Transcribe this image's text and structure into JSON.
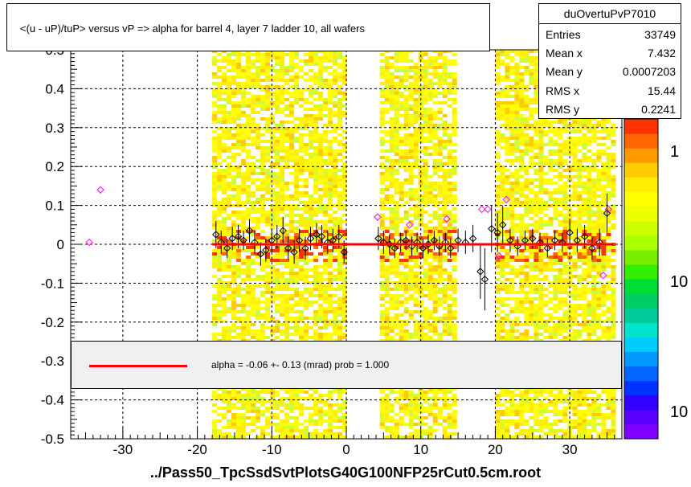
{
  "title": "<(u - uP)/tuP> versus  vP => alpha for barrel 4, layer 7 ladder 10, all wafers",
  "footer": "../Pass50_TpcSsdSvtPlotsG40G100NFP25rCut0.5cm.root",
  "stats": {
    "name": "duOvertuPvP7010",
    "rows": [
      {
        "label": "Entries",
        "value": "33749"
      },
      {
        "label": "Mean x",
        "value": "7.432"
      },
      {
        "label": "Mean y",
        "value": "0.0007203"
      },
      {
        "label": "RMS x",
        "value": "15.44"
      },
      {
        "label": "RMS y",
        "value": "0.2241"
      }
    ]
  },
  "fit": {
    "label": "alpha =   -0.06 +-  0.13 (mrad) prob = 1.000",
    "color": "#ff0000"
  },
  "palette": {
    "labels": [
      "1",
      "10",
      "10"
    ],
    "colors": [
      "#7f00ff",
      "#5a00ff",
      "#3300ff",
      "#0033ff",
      "#0066ff",
      "#0099ff",
      "#00ccff",
      "#00e5cc",
      "#00cc99",
      "#00cc66",
      "#00dd33",
      "#33ee00",
      "#77ee00",
      "#aaff00",
      "#ccff00",
      "#eeff00",
      "#ffff00",
      "#ffee00",
      "#ffcc00",
      "#ff9900",
      "#ff6600",
      "#ff3300"
    ]
  },
  "chart_data": {
    "type": "scatter",
    "title": "<(u - uP)/tuP> versus  vP => alpha for barrel 4, layer 7 ladder 10, all wafers",
    "xlim": [
      -37,
      37
    ],
    "ylim": [
      -0.5,
      0.5
    ],
    "x_ticks": [
      "-30",
      "-20",
      "-10",
      "0",
      "10",
      "20",
      "30"
    ],
    "y_ticks": [
      "-0.5",
      "-0.4",
      "-0.3",
      "-0.2",
      "-0.1",
      "0",
      "0.1",
      "0.2",
      "0.3",
      "0.4",
      "0.5"
    ],
    "x_tick_values": [
      -30,
      -20,
      -10,
      0,
      10,
      20,
      30
    ],
    "y_tick_values": [
      -0.5,
      -0.4,
      -0.3,
      -0.2,
      -0.1,
      0,
      0.1,
      0.2,
      0.3,
      0.4,
      0.5
    ],
    "grid": true,
    "density_bands_x": [
      [
        -18,
        0
      ],
      [
        4.5,
        14.5
      ],
      [
        20,
        36
      ]
    ],
    "fit_line": {
      "x": [
        -18,
        35.5
      ],
      "y": [
        0,
        0
      ]
    },
    "profile_points": [
      {
        "x": -17.5,
        "y": 0.025,
        "e": 0.035
      },
      {
        "x": -16.8,
        "y": 0.005,
        "e": 0.03
      },
      {
        "x": -16.0,
        "y": -0.01,
        "e": 0.025
      },
      {
        "x": -15.3,
        "y": 0.015,
        "e": 0.03
      },
      {
        "x": -14.5,
        "y": 0.02,
        "e": 0.03
      },
      {
        "x": -13.8,
        "y": 0.01,
        "e": 0.025
      },
      {
        "x": -13.0,
        "y": 0.035,
        "e": 0.03
      },
      {
        "x": -12.3,
        "y": 0.005,
        "e": 0.03
      },
      {
        "x": -11.5,
        "y": -0.025,
        "e": 0.03
      },
      {
        "x": -10.8,
        "y": -0.015,
        "e": 0.03
      },
      {
        "x": -10.0,
        "y": 0.01,
        "e": 0.03
      },
      {
        "x": -9.3,
        "y": 0.02,
        "e": 0.03
      },
      {
        "x": -8.5,
        "y": 0.035,
        "e": 0.035
      },
      {
        "x": -7.8,
        "y": -0.01,
        "e": 0.03
      },
      {
        "x": -7.0,
        "y": -0.02,
        "e": 0.03
      },
      {
        "x": -6.3,
        "y": 0.01,
        "e": 0.03
      },
      {
        "x": -5.5,
        "y": -0.01,
        "e": 0.03
      },
      {
        "x": -4.8,
        "y": 0.015,
        "e": 0.03
      },
      {
        "x": -4.0,
        "y": 0.025,
        "e": 0.03
      },
      {
        "x": -3.3,
        "y": 0.02,
        "e": 0.03
      },
      {
        "x": -2.5,
        "y": 0.005,
        "e": 0.03
      },
      {
        "x": -1.8,
        "y": 0.01,
        "e": 0.03
      },
      {
        "x": -1.0,
        "y": 0.02,
        "e": 0.03
      },
      {
        "x": -0.3,
        "y": -0.02,
        "e": 0.03
      },
      {
        "x": 4.3,
        "y": 0.015,
        "e": 0.03
      },
      {
        "x": 5.0,
        "y": 0.005,
        "e": 0.03
      },
      {
        "x": 5.8,
        "y": 0.0,
        "e": 0.025
      },
      {
        "x": 6.5,
        "y": -0.01,
        "e": 0.025
      },
      {
        "x": 7.3,
        "y": 0.005,
        "e": 0.025
      },
      {
        "x": 8.0,
        "y": 0.01,
        "e": 0.025
      },
      {
        "x": 8.8,
        "y": -0.005,
        "e": 0.025
      },
      {
        "x": 9.5,
        "y": 0.005,
        "e": 0.025
      },
      {
        "x": 10.3,
        "y": -0.01,
        "e": 0.025
      },
      {
        "x": 11.0,
        "y": 0.0,
        "e": 0.025
      },
      {
        "x": 11.8,
        "y": 0.01,
        "e": 0.025
      },
      {
        "x": 12.5,
        "y": -0.005,
        "e": 0.025
      },
      {
        "x": 13.3,
        "y": 0.005,
        "e": 0.025
      },
      {
        "x": 14.0,
        "y": -0.01,
        "e": 0.025
      },
      {
        "x": 15.0,
        "y": 0.01,
        "e": 0.03
      },
      {
        "x": 16.0,
        "y": 0.005,
        "e": 0.03
      },
      {
        "x": 17.0,
        "y": 0.015,
        "e": 0.035
      },
      {
        "x": 18.0,
        "y": -0.07,
        "e": 0.07
      },
      {
        "x": 18.6,
        "y": -0.09,
        "e": 0.08
      },
      {
        "x": 19.5,
        "y": 0.04,
        "e": 0.06
      },
      {
        "x": 20.3,
        "y": 0.03,
        "e": 0.05
      },
      {
        "x": 21.0,
        "y": 0.05,
        "e": 0.05
      },
      {
        "x": 22.0,
        "y": 0.01,
        "e": 0.03
      },
      {
        "x": 23.0,
        "y": -0.005,
        "e": 0.025
      },
      {
        "x": 24.0,
        "y": 0.01,
        "e": 0.025
      },
      {
        "x": 25.0,
        "y": 0.015,
        "e": 0.025
      },
      {
        "x": 26.0,
        "y": 0.005,
        "e": 0.025
      },
      {
        "x": 27.0,
        "y": -0.01,
        "e": 0.025
      },
      {
        "x": 28.0,
        "y": 0.01,
        "e": 0.025
      },
      {
        "x": 29.0,
        "y": 0.005,
        "e": 0.025
      },
      {
        "x": 30.0,
        "y": 0.03,
        "e": 0.03
      },
      {
        "x": 31.0,
        "y": 0.01,
        "e": 0.03
      },
      {
        "x": 32.0,
        "y": 0.02,
        "e": 0.03
      },
      {
        "x": 33.0,
        "y": -0.01,
        "e": 0.03
      },
      {
        "x": 34.0,
        "y": 0.005,
        "e": 0.035
      },
      {
        "x": 35.0,
        "y": 0.08,
        "e": 0.05
      }
    ],
    "outlier_points": [
      {
        "x": -34.5,
        "y": 0.005
      },
      {
        "x": -33.0,
        "y": 0.14
      },
      {
        "x": 4.2,
        "y": 0.07
      },
      {
        "x": 8.5,
        "y": 0.05
      },
      {
        "x": 13.5,
        "y": 0.065
      },
      {
        "x": 18.2,
        "y": 0.09
      },
      {
        "x": 19.0,
        "y": 0.09
      },
      {
        "x": 20.5,
        "y": -0.03
      },
      {
        "x": 21.5,
        "y": 0.115
      },
      {
        "x": 34.5,
        "y": -0.08
      },
      {
        "x": 35.2,
        "y": 0.09
      }
    ]
  }
}
